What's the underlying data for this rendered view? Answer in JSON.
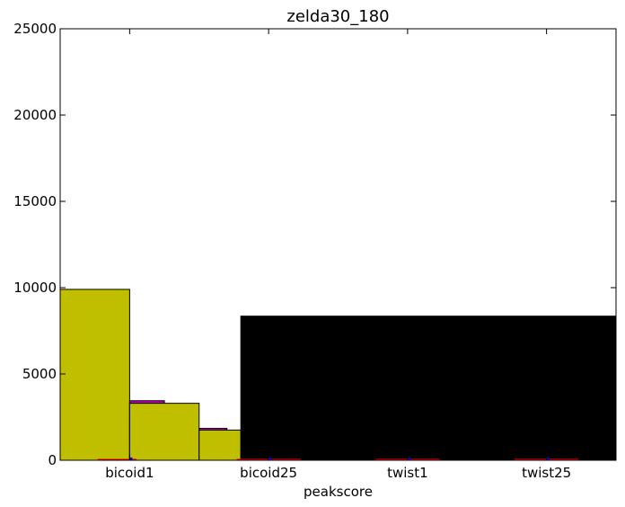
{
  "chart_data": {
    "type": "bar",
    "title": "zelda30_180",
    "xlabel": "peakscore",
    "ylabel": "",
    "ylim": [
      0,
      25000
    ],
    "xlim": [
      0,
      4
    ],
    "yticks": [
      0,
      5000,
      10000,
      15000,
      20000,
      25000
    ],
    "xticks": [
      {
        "x": 0.5,
        "label": "bicoid1"
      },
      {
        "x": 1.5,
        "label": "bicoid25"
      },
      {
        "x": 2.5,
        "label": "twist1"
      },
      {
        "x": 3.5,
        "label": "twist25"
      }
    ],
    "bars": [
      {
        "x0": 0.0,
        "x1": 0.5,
        "value": 9900,
        "color": "#bfbf00"
      },
      {
        "x0": 0.5,
        "x1": 0.75,
        "value": 3450,
        "color": "#bf00bf"
      },
      {
        "x0": 0.5,
        "x1": 1.0,
        "value": 3300,
        "color": "#bfbf00"
      },
      {
        "x0": 1.0,
        "x1": 1.2,
        "value": 1850,
        "color": "#bf00bf"
      },
      {
        "x0": 1.0,
        "x1": 1.3,
        "value": 1750,
        "color": "#bfbf00"
      },
      {
        "x0": 1.3,
        "x1": 4.0,
        "value": 8350,
        "color": "#000000"
      }
    ],
    "markers": [
      {
        "x0": 0.27,
        "x1": 0.55,
        "value": 80,
        "color": "#ff0000"
      },
      {
        "x0": 0.5,
        "x1": 0.52,
        "value": 160,
        "color": "#0000ff"
      },
      {
        "x0": 1.27,
        "x1": 1.73,
        "value": 80,
        "color": "#ff0000"
      },
      {
        "x0": 1.5,
        "x1": 1.52,
        "value": 160,
        "color": "#0000ff"
      },
      {
        "x0": 2.27,
        "x1": 2.73,
        "value": 80,
        "color": "#ff0000"
      },
      {
        "x0": 2.5,
        "x1": 2.52,
        "value": 160,
        "color": "#0000ff"
      },
      {
        "x0": 3.27,
        "x1": 3.73,
        "value": 80,
        "color": "#ff0000"
      },
      {
        "x0": 3.5,
        "x1": 3.52,
        "value": 160,
        "color": "#0000ff"
      }
    ]
  }
}
